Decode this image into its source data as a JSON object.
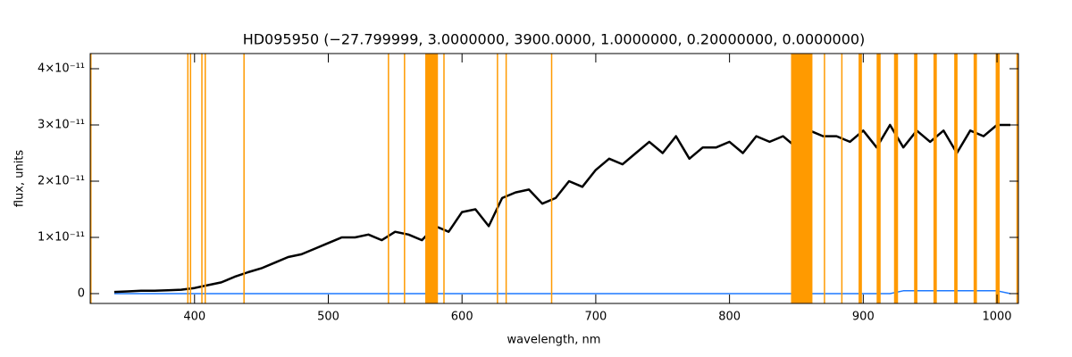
{
  "chart_data": {
    "type": "line",
    "title": "HD095950   (−27.799999, 3.0000000, 3900.0000, 1.0000000, 0.20000000, 0.0000000)",
    "x_label": "wavelength, nm",
    "y_label": "flux, units",
    "xlim": [
      322,
      1016
    ],
    "ylim": [
      -1.75e-12,
      4.27e-11
    ],
    "xticks": [
      400,
      500,
      600,
      700,
      800,
      900,
      1000
    ],
    "yticks": [
      0,
      {
        "value": 1e-11,
        "label": "1×10⁻¹¹"
      },
      {
        "value": 2e-11,
        "label": "2×10⁻¹¹"
      },
      {
        "value": 3e-11,
        "label": "3×10⁻¹¹"
      },
      {
        "value": 4e-11,
        "label": "4×10⁻¹¹"
      }
    ],
    "x": [
      340,
      350,
      360,
      370,
      380,
      390,
      400,
      410,
      420,
      430,
      440,
      450,
      460,
      470,
      480,
      490,
      500,
      510,
      520,
      530,
      540,
      550,
      560,
      570,
      580,
      590,
      600,
      610,
      620,
      630,
      640,
      650,
      660,
      670,
      680,
      690,
      700,
      710,
      720,
      730,
      740,
      750,
      760,
      770,
      780,
      790,
      800,
      810,
      820,
      830,
      840,
      850,
      860,
      870,
      880,
      890,
      900,
      910,
      920,
      930,
      940,
      950,
      960,
      970,
      980,
      990,
      1000,
      1010
    ],
    "series": [
      {
        "color": "#000000",
        "values": [
          3e-13,
          4e-13,
          5e-13,
          5e-13,
          6e-13,
          7e-13,
          1e-12,
          1.5e-12,
          2e-12,
          3e-12,
          3.8e-12,
          4.5e-12,
          5.5e-12,
          6.5e-12,
          7e-12,
          8e-12,
          9e-12,
          1e-11,
          1e-11,
          1.05e-11,
          9.5e-12,
          1.1e-11,
          1.05e-11,
          9.5e-12,
          1.2e-11,
          1.1e-11,
          1.45e-11,
          1.5e-11,
          1.2e-11,
          1.7e-11,
          1.8e-11,
          1.85e-11,
          1.6e-11,
          1.7e-11,
          2e-11,
          1.9e-11,
          2.2e-11,
          2.4e-11,
          2.3e-11,
          2.5e-11,
          2.7e-11,
          2.5e-11,
          2.8e-11,
          2.4e-11,
          2.6e-11,
          2.6e-11,
          2.7e-11,
          2.5e-11,
          2.8e-11,
          2.7e-11,
          2.8e-11,
          2.6e-11,
          2.9e-11,
          2.8e-11,
          2.8e-11,
          2.7e-11,
          2.9e-11,
          2.6e-11,
          3e-11,
          2.6e-11,
          2.9e-11,
          2.7e-11,
          2.9e-11,
          2.5e-11,
          2.9e-11,
          2.8e-11,
          3e-11,
          3e-11
        ]
      },
      {
        "color": "#1e78ff",
        "values": [
          0,
          0,
          0,
          0,
          0,
          0,
          0,
          0,
          0,
          0,
          0,
          0,
          0,
          0,
          0,
          0,
          0,
          0,
          0,
          0,
          0,
          0,
          0,
          0,
          0,
          0,
          0,
          0,
          0,
          0,
          0,
          0,
          0,
          0,
          0,
          0,
          0,
          0,
          0,
          0,
          0,
          0,
          0,
          0,
          0,
          0,
          0,
          0,
          0,
          0,
          0,
          0,
          0,
          0,
          0,
          0,
          0,
          0,
          0,
          5e-13,
          5e-13,
          5e-13,
          5e-13,
          5e-13,
          5e-13,
          5e-13,
          5e-13,
          0
        ]
      }
    ],
    "masked_regions": [
      [
        322,
        323
      ],
      [
        394.5,
        395.5
      ],
      [
        396.5,
        397.5
      ],
      [
        405,
        406
      ],
      [
        407.5,
        408.5
      ],
      [
        436.5,
        437.5
      ],
      [
        544.5,
        545.5
      ],
      [
        556.5,
        557.5
      ],
      [
        572.5,
        582
      ],
      [
        586,
        587
      ],
      [
        626,
        627
      ],
      [
        632.5,
        633.5
      ],
      [
        666.5,
        667.5
      ],
      [
        846,
        862
      ],
      [
        870.5,
        871.5
      ],
      [
        883.5,
        884.5
      ],
      [
        896.5,
        899
      ],
      [
        910,
        913
      ],
      [
        923,
        926
      ],
      [
        938,
        940.5
      ],
      [
        952.5,
        955
      ],
      [
        968,
        970.5
      ],
      [
        982.5,
        985
      ],
      [
        999,
        1002
      ],
      [
        1014.5,
        1016
      ]
    ],
    "mask_color": "#ff9a00"
  }
}
